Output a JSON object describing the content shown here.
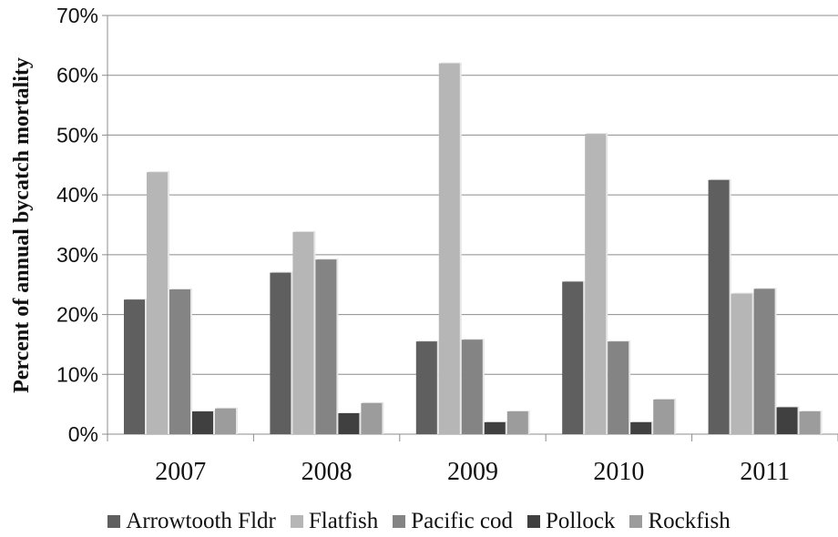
{
  "chart_data": {
    "type": "bar",
    "title": "",
    "xlabel": "",
    "ylabel": "Percent of annual bycatch mortality",
    "ylim": [
      0,
      70
    ],
    "yticks": [
      "0%",
      "10%",
      "20%",
      "30%",
      "40%",
      "50%",
      "60%",
      "70%"
    ],
    "grid": true,
    "legend_position": "bottom",
    "categories": [
      "2007",
      "2008",
      "2009",
      "2010",
      "2011"
    ],
    "series": [
      {
        "name": "Arrowtooth Fldr",
        "color": "#5f5f5f",
        "values": [
          22.5,
          27.0,
          15.5,
          25.5,
          42.5
        ]
      },
      {
        "name": "Flatfish",
        "color": "#b6b6b6",
        "values": [
          43.8,
          33.8,
          62.0,
          50.2,
          23.5
        ]
      },
      {
        "name": "Pacific cod",
        "color": "#848484",
        "values": [
          24.2,
          29.2,
          15.8,
          15.5,
          24.3
        ]
      },
      {
        "name": "Pollock",
        "color": "#404040",
        "values": [
          3.8,
          3.5,
          2.0,
          2.0,
          4.5
        ]
      },
      {
        "name": "Rockfish",
        "color": "#9c9c9c",
        "values": [
          4.3,
          5.2,
          3.8,
          5.8,
          3.8
        ]
      }
    ]
  }
}
